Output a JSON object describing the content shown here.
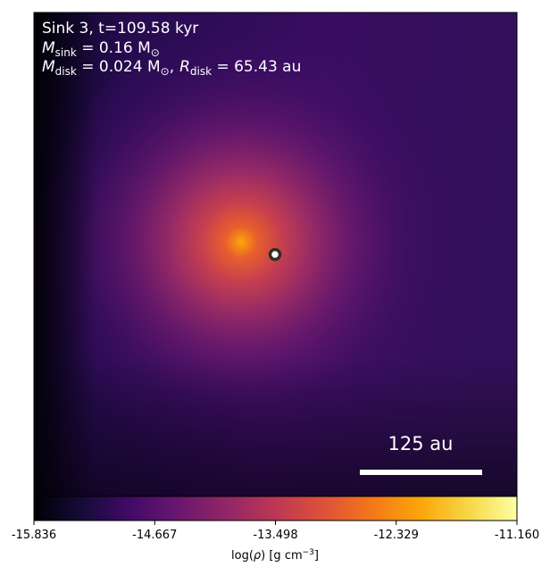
{
  "chart_data": {
    "type": "heatmap",
    "colormap": "inferno",
    "annotation": {
      "line1": "Sink 3, t=109.58 kyr",
      "msink_symbol": "M",
      "msink_sub": "sink",
      "msink_value": " = 0.16 M",
      "msink_unit_sub": "⊙",
      "mdisk_symbol": "M",
      "mdisk_sub": "disk",
      "mdisk_value": " = 0.024 M",
      "mdisk_unit_sub": "⊙",
      "separator": ",",
      "rdisk_symbol": "R",
      "rdisk_sub": "disk",
      "rdisk_value": " = 65.43 au"
    },
    "scalebar": {
      "label": "125 au",
      "length_au": 125
    },
    "sink_marker": {
      "position": "center"
    },
    "colorbar": {
      "ticks": [
        "-15.836",
        "-14.667",
        "-13.498",
        "-12.329",
        "-11.160"
      ],
      "range": [
        -15.836,
        -11.16
      ],
      "label_prefix": "log(",
      "label_rho": "ρ",
      "label_suffix": ") [g cm",
      "label_exp": "−3",
      "label_close": "]"
    },
    "colors": {
      "annotation_text": "#ffffff",
      "marker_fill": "#ffffff",
      "marker_edge": "#333333"
    }
  }
}
